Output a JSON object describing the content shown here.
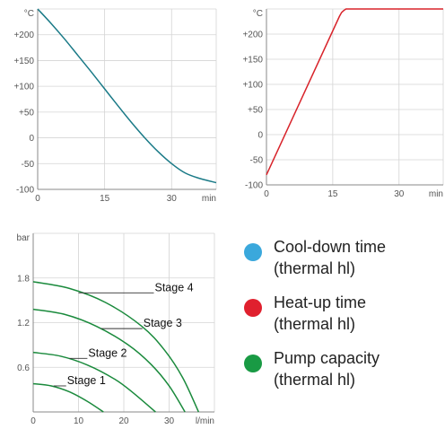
{
  "chart_data": [
    {
      "type": "line",
      "title": "",
      "ylabel": "°C",
      "xlabel": "min",
      "xticks": [
        0,
        15,
        30
      ],
      "yticks": [
        "+200",
        "+150",
        "+100",
        "+50",
        "0",
        "-50",
        "-100"
      ],
      "ytick_values": [
        200,
        150,
        100,
        50,
        0,
        -50,
        -100
      ],
      "xlim": [
        0,
        40
      ],
      "ylim": [
        -100,
        250
      ],
      "grid": true,
      "series": [
        {
          "color": "#1a7a87",
          "x": [
            0,
            3,
            6,
            9,
            12,
            15,
            18,
            21,
            24,
            27,
            30,
            33,
            36,
            40
          ],
          "y": [
            250,
            222,
            192,
            160,
            128,
            95,
            62,
            30,
            0,
            -27,
            -50,
            -68,
            -78,
            -87
          ]
        }
      ]
    },
    {
      "type": "line",
      "title": "",
      "ylabel": "°C",
      "xlabel": "min",
      "xticks": [
        0,
        15,
        30
      ],
      "yticks": [
        "+200",
        "+150",
        "+100",
        "+50",
        "0",
        "-50",
        "-100"
      ],
      "ytick_values": [
        200,
        150,
        100,
        50,
        0,
        -50,
        -100
      ],
      "xlim": [
        0,
        40
      ],
      "ylim": [
        -100,
        250
      ],
      "grid": true,
      "series": [
        {
          "color": "#d8232a",
          "x": [
            0,
            16.5,
            17,
            17.5,
            18,
            40
          ],
          "y": [
            -80,
            235,
            243,
            247,
            250,
            250
          ]
        }
      ]
    },
    {
      "type": "line",
      "title": "",
      "ylabel": "bar",
      "xlabel": "l/min",
      "xticks": [
        0,
        10,
        20,
        30
      ],
      "yticks": [
        "1.8",
        "1.2",
        "0.6"
      ],
      "ytick_values": [
        1.8,
        1.2,
        0.6
      ],
      "xlim": [
        0,
        40
      ],
      "ylim": [
        0,
        2.4
      ],
      "grid": true,
      "series": [
        {
          "name": "Stage 1",
          "color": "#1a8a3c",
          "x": [
            0,
            4,
            8,
            12,
            15.5
          ],
          "y": [
            0.38,
            0.35,
            0.27,
            0.14,
            0
          ]
        },
        {
          "name": "Stage 2",
          "color": "#1a8a3c",
          "x": [
            0,
            6,
            12,
            18,
            22,
            27
          ],
          "y": [
            0.8,
            0.75,
            0.63,
            0.44,
            0.26,
            0
          ]
        },
        {
          "name": "Stage 3",
          "color": "#1a8a3c",
          "x": [
            0,
            7,
            14,
            21,
            26,
            30,
            33.5
          ],
          "y": [
            1.38,
            1.31,
            1.15,
            0.9,
            0.64,
            0.35,
            0
          ]
        },
        {
          "name": "Stage 4",
          "color": "#1a8a3c",
          "x": [
            0,
            8,
            16,
            24,
            29,
            33,
            36.5
          ],
          "y": [
            1.75,
            1.66,
            1.47,
            1.15,
            0.83,
            0.46,
            0
          ]
        }
      ],
      "annotations": [
        {
          "text": "Stage 4",
          "x": 10,
          "y": 1.6
        },
        {
          "text": "Stage 3",
          "x": 15,
          "y": 1.12
        },
        {
          "text": "Stage 2",
          "x": 8,
          "y": 0.72
        },
        {
          "text": "Stage 1",
          "x": 4.5,
          "y": 0.35
        }
      ]
    }
  ],
  "legend": {
    "items": [
      {
        "label_1": "Cool-down time",
        "label_2": "(thermal hl)",
        "color": "#3aa8dc"
      },
      {
        "label_1": "Heat-up time",
        "label_2": "(thermal hl)",
        "color": "#e0202e"
      },
      {
        "label_1": "Pump capacity",
        "label_2": "(thermal hl)",
        "color": "#199a44"
      }
    ]
  }
}
